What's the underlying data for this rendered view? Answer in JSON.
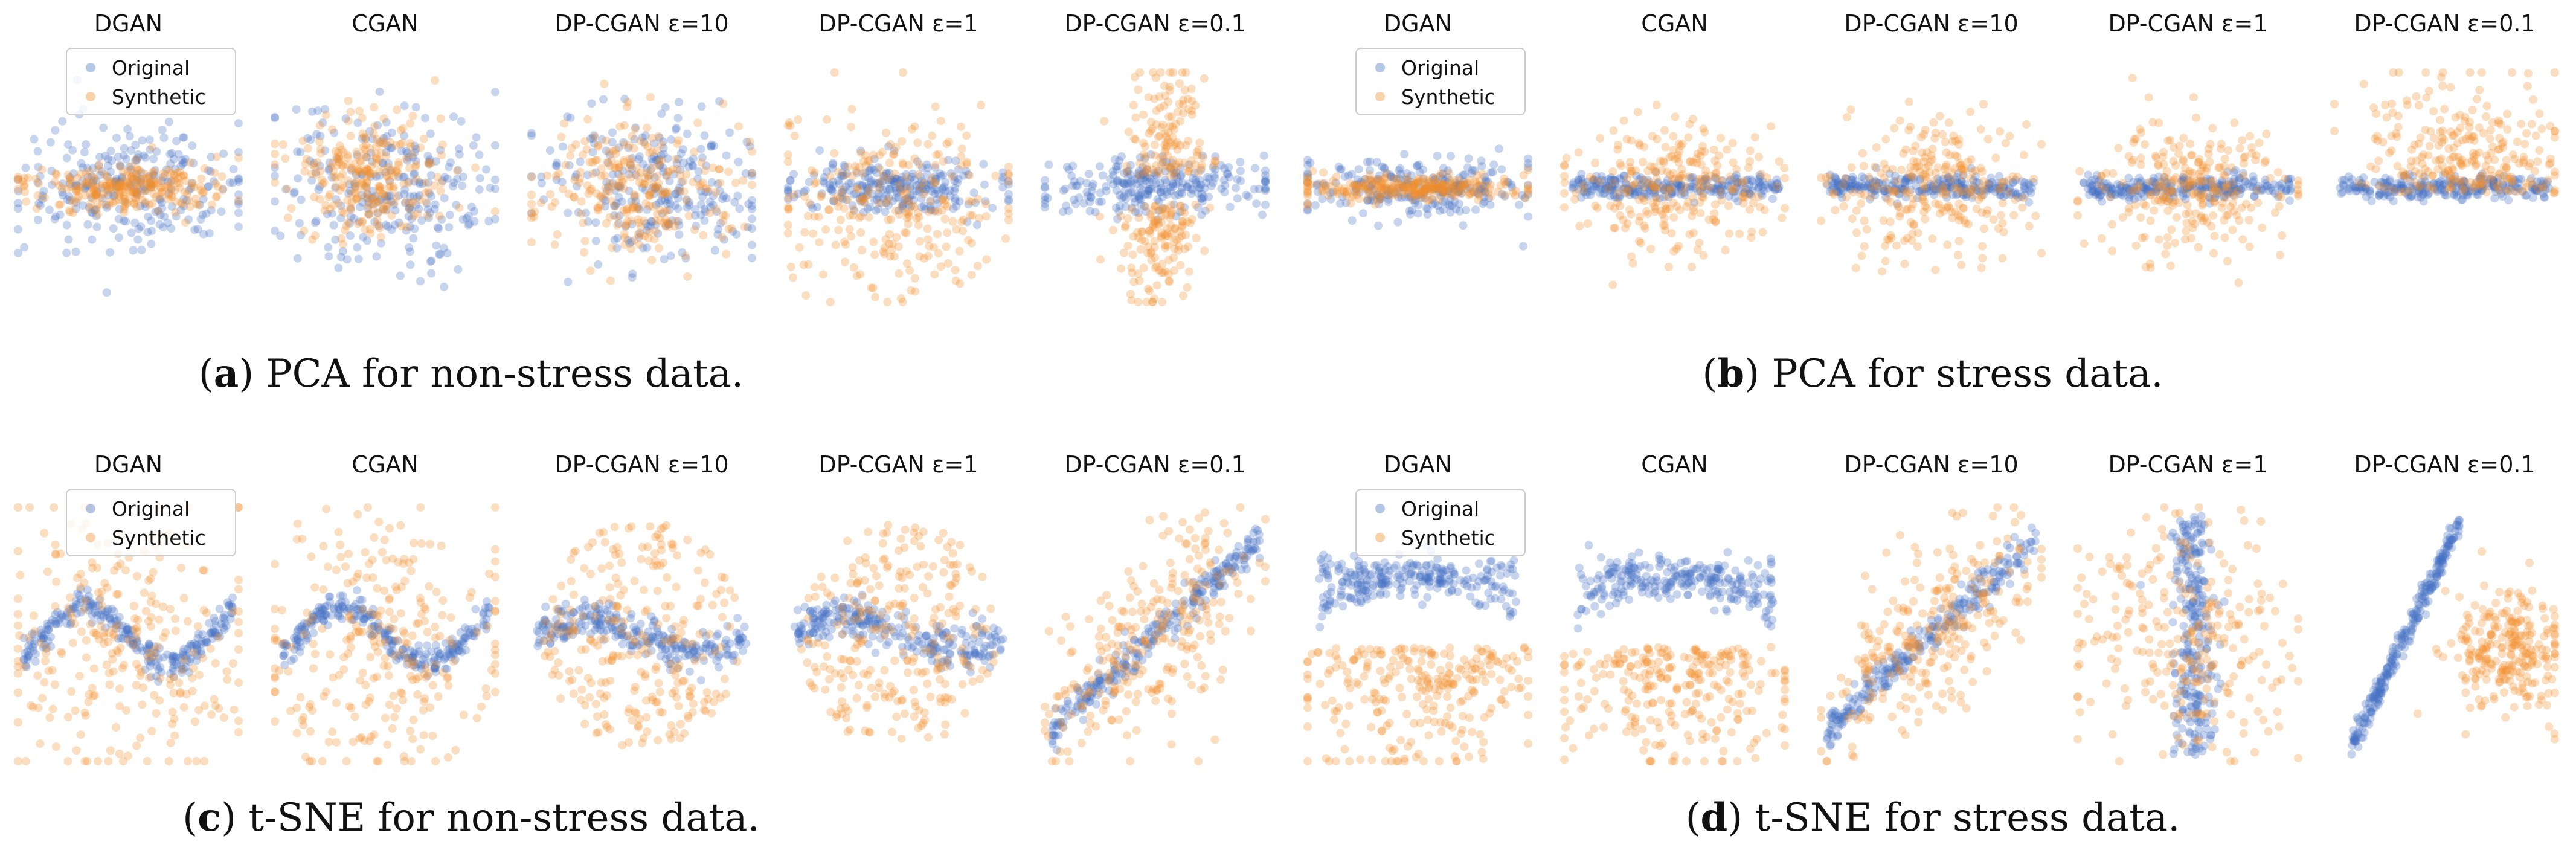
{
  "figure": {
    "colors": {
      "original": "#4472c4",
      "synthetic": "#f28e2b"
    },
    "legend": {
      "original_label": "Original",
      "synthetic_label": "Synthetic"
    }
  },
  "chart_data": [
    {
      "id": "a",
      "type": "scatter",
      "caption_letter": "a",
      "caption_text": "PCA for non-stress data.",
      "method": "PCA",
      "data": "non-stress",
      "legend_in_first_panel": true,
      "panels": [
        {
          "title": "DGAN",
          "pattern": "pca-mixed"
        },
        {
          "title": "CGAN",
          "pattern": "pca-offset"
        },
        {
          "title": "DP-CGAN ε=10",
          "pattern": "pca-blob"
        },
        {
          "title": "DP-CGAN ε=1",
          "pattern": "pca-spread"
        },
        {
          "title": "DP-CGAN ε=0.1",
          "pattern": "pca-cross"
        }
      ]
    },
    {
      "id": "b",
      "type": "scatter",
      "caption_letter": "b",
      "caption_text": "PCA for stress data.",
      "method": "PCA",
      "data": "stress",
      "legend_in_first_panel": true,
      "panels": [
        {
          "title": "DGAN",
          "pattern": "pca-flat"
        },
        {
          "title": "CGAN",
          "pattern": "pca-flat-wide"
        },
        {
          "title": "DP-CGAN ε=10",
          "pattern": "pca-flat-wide"
        },
        {
          "title": "DP-CGAN ε=1",
          "pattern": "pca-flat-wide"
        },
        {
          "title": "DP-CGAN ε=0.1",
          "pattern": "pca-flat-up"
        }
      ]
    },
    {
      "id": "c",
      "type": "scatter",
      "caption_letter": "c",
      "caption_text": "t-SNE for non-stress data.",
      "method": "t-SNE",
      "data": "non-stress",
      "legend_in_first_panel": true,
      "panels": [
        {
          "title": "DGAN",
          "pattern": "tsne-wave"
        },
        {
          "title": "CGAN",
          "pattern": "tsne-wave"
        },
        {
          "title": "DP-CGAN ε=10",
          "pattern": "tsne-disc"
        },
        {
          "title": "DP-CGAN ε=1",
          "pattern": "tsne-disc"
        },
        {
          "title": "DP-CGAN ε=0.1",
          "pattern": "tsne-diag"
        }
      ]
    },
    {
      "id": "d",
      "type": "scatter",
      "caption_letter": "d",
      "caption_text": "t-SNE for stress data.",
      "method": "t-SNE",
      "data": "stress",
      "legend_in_first_panel": true,
      "panels": [
        {
          "title": "DGAN",
          "pattern": "tsne-arc"
        },
        {
          "title": "CGAN",
          "pattern": "tsne-arc"
        },
        {
          "title": "DP-CGAN ε=10",
          "pattern": "tsne-diag"
        },
        {
          "title": "DP-CGAN ε=1",
          "pattern": "tsne-vertical"
        },
        {
          "title": "DP-CGAN ε=0.1",
          "pattern": "tsne-diag-split"
        }
      ]
    }
  ]
}
